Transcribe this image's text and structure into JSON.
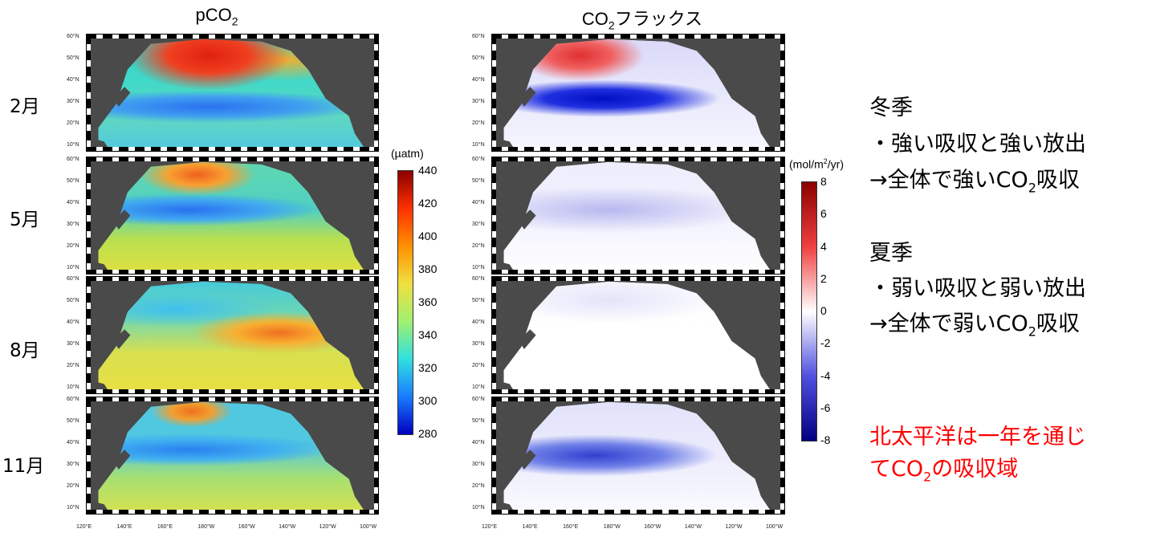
{
  "columns": [
    {
      "title_main": "pCO",
      "title_sub": "2",
      "title_suffix": ""
    },
    {
      "title_main": "CO",
      "title_sub": "2",
      "title_suffix": "フラックス"
    }
  ],
  "months": [
    "2月",
    "5月",
    "8月",
    "11月"
  ],
  "lat_ticks": [
    "60°N",
    "50°N",
    "40°N",
    "30°N",
    "20°N",
    "10°N"
  ],
  "lon_ticks": [
    "120°E",
    "140°E",
    "160°E",
    "180°W",
    "160°W",
    "140°W",
    "120°W",
    "100°W"
  ],
  "colorbar_pco2": {
    "unit": "(µatm)",
    "labels": [
      "440",
      "420",
      "400",
      "380",
      "360",
      "340",
      "320",
      "300",
      "280"
    ],
    "colors": [
      "#8b0000",
      "#ff3000",
      "#ff9000",
      "#f0e040",
      "#a0f070",
      "#30e0e0",
      "#1a7cff",
      "#0000c0"
    ]
  },
  "colorbar_flux": {
    "unit_pre": "(mol/m",
    "unit_sup": "2",
    "unit_post": "/yr)",
    "labels": [
      "8",
      "6",
      "4",
      "2",
      "0",
      "-2",
      "-4",
      "-6",
      "-8"
    ],
    "colors": [
      "#8b0000",
      "#f04040",
      "#ffffff",
      "#5050e0",
      "#000080"
    ]
  },
  "winter": {
    "heading": "冬季",
    "line1": "・強い吸収と強い放出",
    "line2_pre": "→全体で強いCO",
    "line2_sub": "2",
    "line2_post": "吸収"
  },
  "summer": {
    "heading": "夏季",
    "line1": "・弱い吸収と弱い放出",
    "line2_pre": "→全体で弱いCO",
    "line2_sub": "2",
    "line2_post": "吸収"
  },
  "conclusion": {
    "line1": "北太平洋は一年を通じ",
    "line2_pre": "てCO",
    "line2_sub": "2",
    "line2_post": "の吸収域",
    "color": "#ff0000"
  }
}
